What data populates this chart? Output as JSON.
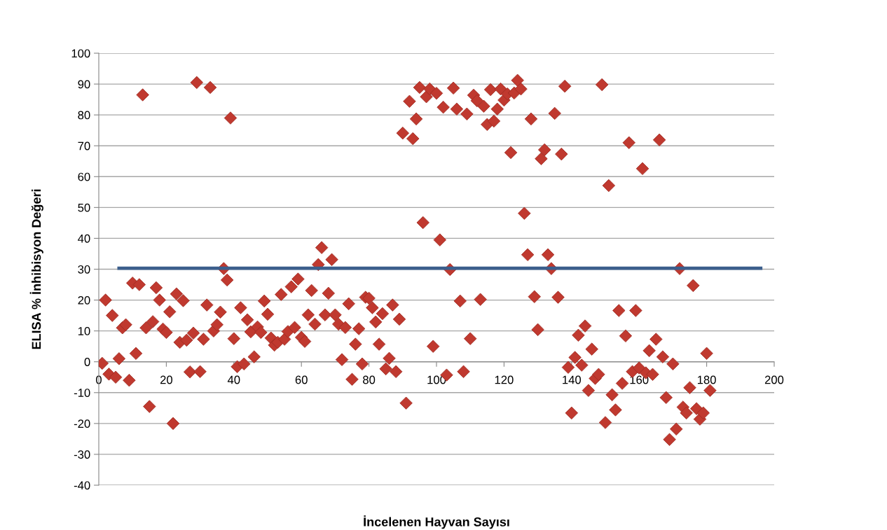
{
  "chart_data": {
    "type": "scatter",
    "xlabel": "İncelenen Hayvan Sayısı",
    "ylabel": "ELISA % İnhibisyon Değeri",
    "xlim": [
      0,
      200
    ],
    "xticks": [
      0,
      20,
      40,
      60,
      80,
      100,
      120,
      140,
      160,
      180,
      200
    ],
    "ylim": [
      -40,
      100
    ],
    "yticks": [
      -40,
      -30,
      -20,
      -10,
      0,
      10,
      20,
      30,
      40,
      50,
      60,
      70,
      80,
      90,
      100
    ],
    "grid": "y",
    "marker": "diamond",
    "legend": false,
    "series": [
      {
        "color": "#c0392f",
        "x": [
          1,
          2,
          3,
          4,
          5,
          6,
          7,
          8,
          9,
          10,
          11,
          12,
          13,
          14,
          15,
          16,
          17,
          18,
          19,
          20,
          21,
          22,
          23,
          24,
          25,
          26,
          27,
          28,
          29,
          30,
          31,
          32,
          33,
          34,
          35,
          36,
          37,
          38,
          39,
          40,
          41,
          42,
          43,
          44,
          45,
          46,
          47,
          48,
          49,
          50,
          51,
          52,
          53,
          54,
          55,
          56,
          57,
          58,
          59,
          60,
          61,
          62,
          63,
          64,
          65,
          66,
          67,
          68,
          69,
          70,
          71,
          72,
          73,
          74,
          75,
          76,
          77,
          78,
          79,
          80,
          81,
          82,
          83,
          84,
          85,
          86,
          87,
          88,
          89,
          90,
          91,
          92,
          93,
          94,
          95,
          96,
          97,
          98,
          99,
          100,
          101,
          102,
          103,
          104,
          105,
          106,
          107,
          108,
          109,
          110,
          111,
          112,
          113,
          114,
          115,
          116,
          117,
          118,
          119,
          120,
          121,
          122,
          123,
          124,
          125,
          126,
          127,
          128,
          129,
          130,
          131,
          132,
          133,
          134,
          135,
          136,
          137,
          138,
          139,
          140,
          141,
          142,
          143,
          144,
          145,
          146,
          147,
          148,
          149,
          150,
          151,
          152,
          153,
          154,
          155,
          156,
          157,
          158,
          159,
          160,
          161,
          162,
          163,
          164,
          165,
          166,
          167,
          168,
          169,
          170,
          171,
          172,
          173,
          174,
          175,
          176,
          177,
          178,
          179,
          180,
          181
        ],
        "values": [
          -0.5,
          20,
          -4,
          15,
          -5,
          1,
          11,
          12,
          -6,
          25.5,
          2.7,
          25,
          86.5,
          11,
          -14.5,
          13,
          24,
          20,
          10.6,
          9.5,
          16.2,
          -20,
          22,
          6.3,
          19.8,
          7,
          -3.3,
          9.3,
          90.5,
          -3.2,
          7.3,
          18.4,
          88.9,
          10,
          12,
          16.1,
          30.2,
          26.5,
          79,
          7.5,
          -1.6,
          17.5,
          -0.7,
          13.6,
          9.7,
          1.6,
          11.3,
          9.5,
          19.7,
          15.4,
          7.7,
          5.4,
          6.3,
          21.8,
          7.3,
          9.8,
          24.3,
          11.1,
          26.8,
          7.9,
          6.6,
          15.2,
          23.1,
          12.2,
          31.5,
          37,
          15.2,
          22.2,
          33.1,
          15.2,
          12.2,
          0.7,
          11.1,
          18.8,
          -5.7,
          5.7,
          10.7,
          -0.7,
          20.9,
          20.6,
          17.5,
          12.9,
          5.7,
          15.6,
          -2.3,
          1.1,
          18.4,
          -3.2,
          13.8,
          74.1,
          -13.4,
          84.4,
          72.3,
          78.7,
          88.9,
          45.1,
          85.9,
          88.4,
          5,
          87,
          39.5,
          82.5,
          -4.3,
          29.9,
          88.7,
          81.9,
          19.7,
          -3.2,
          80.3,
          7.5,
          86.4,
          84.6,
          20.2,
          82.8,
          76.9,
          88.2,
          78,
          81.9,
          88.4,
          84.8,
          86.8,
          67.8,
          87.1,
          91.2,
          88.4,
          48.1,
          34.7,
          78.7,
          21.1,
          10.4,
          65.8,
          68.7,
          34.7,
          30.2,
          80.5,
          20.9,
          67.3,
          89.3,
          -1.8,
          -16.6,
          1.4,
          8.6,
          -1.1,
          11.6,
          -9.3,
          4.1,
          -5.4,
          -4.1,
          89.8,
          -19.7,
          57.1,
          -10.7,
          -15.6,
          16.6,
          -7,
          8.4,
          71,
          -3.2,
          16.6,
          -2,
          62.6,
          -3.6,
          3.6,
          -4.1,
          7.3,
          71.9,
          1.6,
          -11.6,
          -25.2,
          -0.7,
          -21.8,
          30.2,
          -14.7,
          -16.6,
          -8.4,
          24.7,
          -15.2,
          -18.6,
          -16.6,
          2.7,
          -9.3
        ]
      },
      {
        "type": "line",
        "color": "#3b5e8c",
        "marker": "none",
        "x": [
          6,
          196
        ],
        "values": [
          30.3,
          30.3
        ]
      }
    ]
  }
}
